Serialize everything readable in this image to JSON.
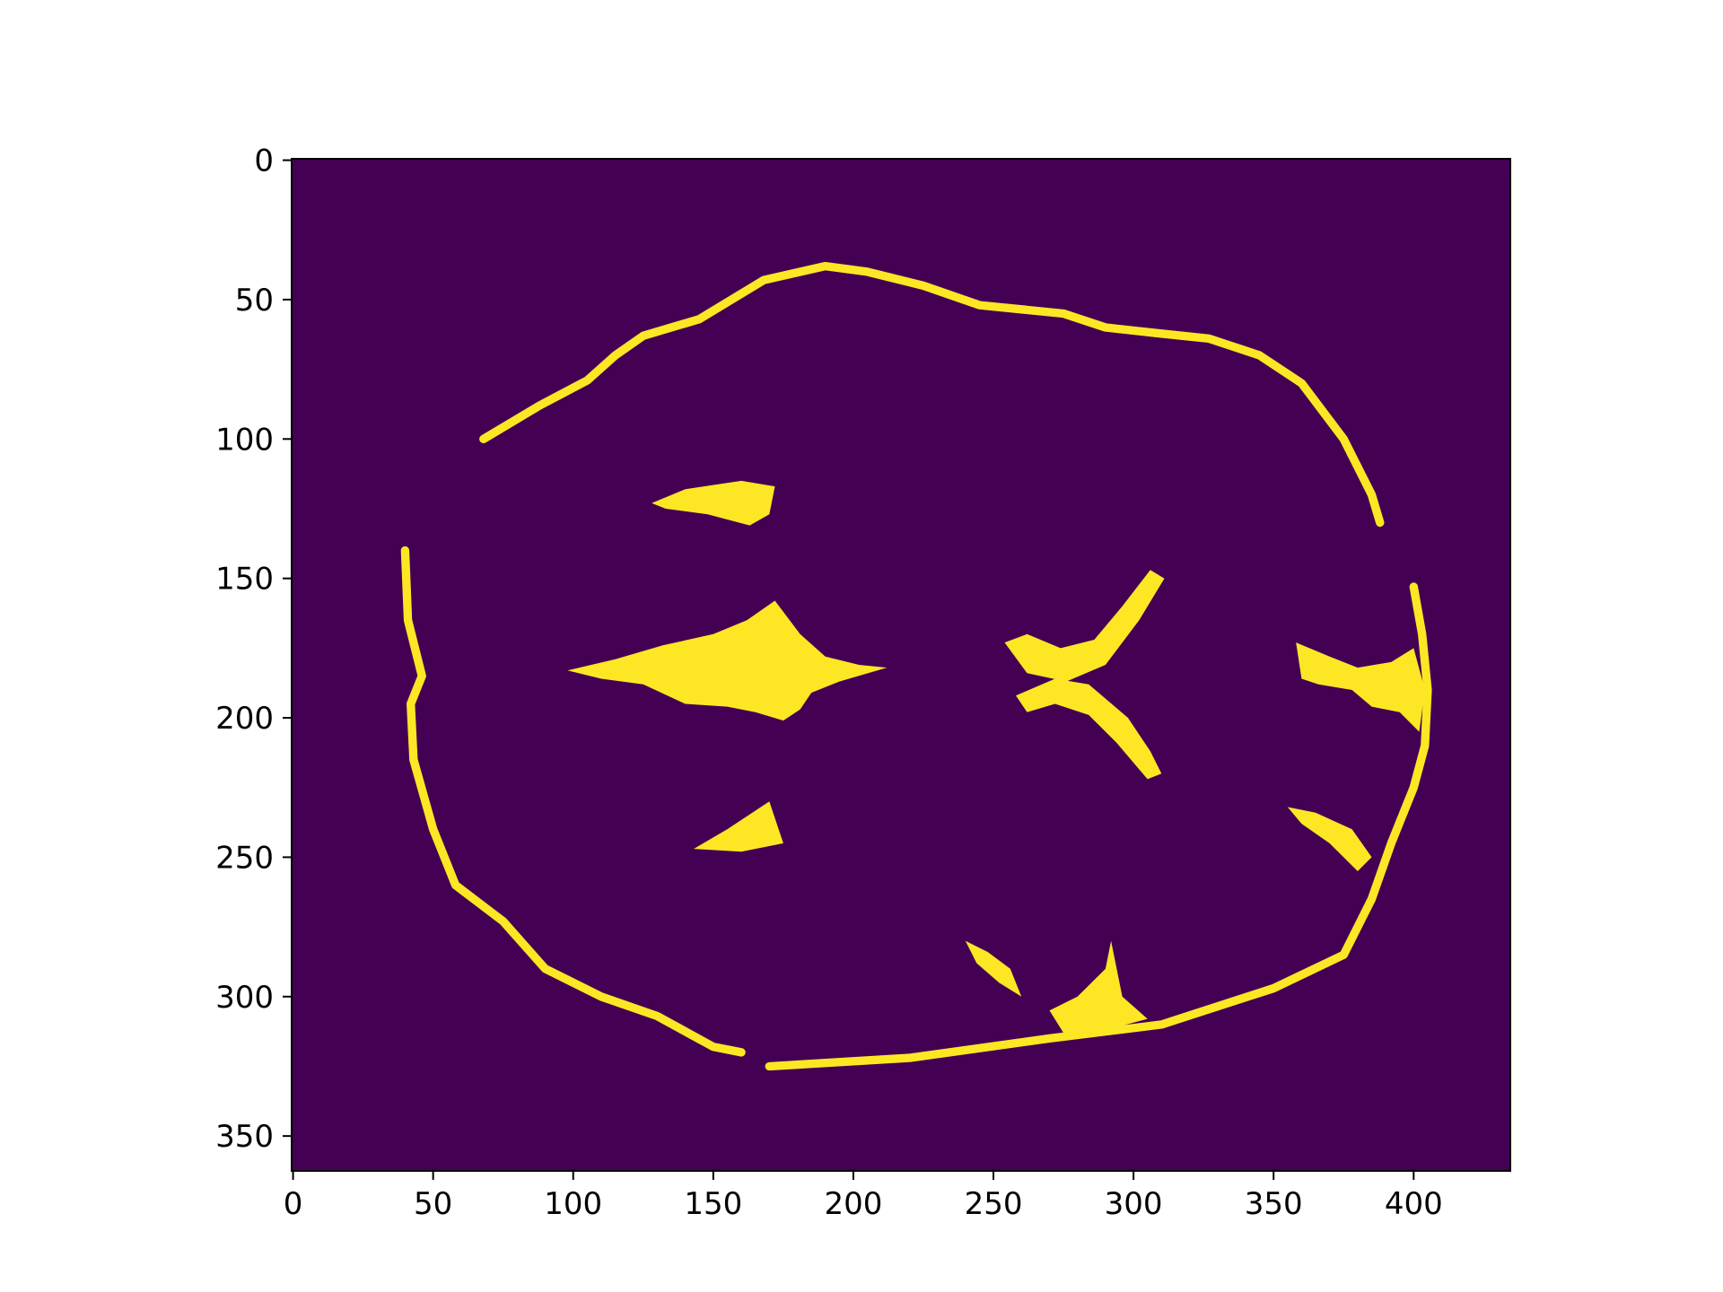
{
  "chart_data": {
    "type": "heatmap",
    "title": "",
    "xlabel": "",
    "ylabel": "",
    "xlim": [
      -0.5,
      434.5
    ],
    "ylim": [
      362.5,
      -0.5
    ],
    "x_ticks": [
      0,
      50,
      100,
      150,
      200,
      250,
      300,
      350,
      400
    ],
    "y_ticks": [
      0,
      50,
      100,
      150,
      200,
      250,
      300,
      350
    ],
    "x_tick_labels": [
      "0",
      "50",
      "100",
      "150",
      "200",
      "250",
      "300",
      "350",
      "400"
    ],
    "y_tick_labels": [
      "0",
      "50",
      "100",
      "150",
      "200",
      "250",
      "300",
      "350"
    ],
    "grid": false,
    "colormap": "viridis",
    "value_range": [
      0,
      1
    ],
    "colors": {
      "background": "#440154",
      "foreground": "#fde725",
      "axis": "#000000"
    },
    "description_values": "binary mask of an axial brain slice; 1 = cerebrospinal fluid / sulci / ventricles, 0 = other",
    "mask_regions": [
      {
        "kind": "outline",
        "name": "outer-rim",
        "width": 3,
        "points": [
          [
            40,
            140
          ],
          [
            41,
            165
          ],
          [
            46,
            185
          ],
          [
            42,
            195
          ],
          [
            43,
            215
          ],
          [
            50,
            240
          ],
          [
            58,
            260
          ],
          [
            75,
            273
          ],
          [
            90,
            290
          ],
          [
            110,
            300
          ],
          [
            130,
            307
          ],
          [
            150,
            318
          ],
          [
            160,
            320
          ]
        ]
      },
      {
        "kind": "outline",
        "name": "outer-rim-right",
        "width": 3,
        "points": [
          [
            170,
            325
          ],
          [
            220,
            322
          ],
          [
            270,
            315
          ],
          [
            310,
            310
          ],
          [
            350,
            297
          ],
          [
            375,
            285
          ],
          [
            385,
            265
          ],
          [
            392,
            245
          ],
          [
            400,
            225
          ],
          [
            404,
            210
          ],
          [
            405,
            190
          ],
          [
            403,
            170
          ],
          [
            400,
            153
          ]
        ]
      },
      {
        "kind": "outline",
        "name": "top-rim",
        "width": 3,
        "points": [
          [
            68,
            100
          ],
          [
            88,
            88
          ],
          [
            105,
            79
          ],
          [
            115,
            70
          ],
          [
            125,
            63
          ],
          [
            145,
            57
          ],
          [
            168,
            43
          ],
          [
            190,
            38
          ],
          [
            205,
            40
          ],
          [
            225,
            45
          ],
          [
            245,
            52
          ],
          [
            275,
            55
          ],
          [
            290,
            60
          ],
          [
            308,
            62
          ],
          [
            327,
            64
          ],
          [
            345,
            70
          ],
          [
            360,
            80
          ],
          [
            375,
            100
          ],
          [
            385,
            120
          ],
          [
            388,
            130
          ]
        ]
      },
      {
        "kind": "blob",
        "name": "top-left-ventricle",
        "points": [
          [
            128,
            123
          ],
          [
            140,
            118
          ],
          [
            160,
            115
          ],
          [
            172,
            117
          ],
          [
            170,
            127
          ],
          [
            163,
            131
          ],
          [
            148,
            127
          ],
          [
            133,
            125
          ]
        ]
      },
      {
        "kind": "blob",
        "name": "center-left-cistern",
        "points": [
          [
            98,
            183
          ],
          [
            115,
            179
          ],
          [
            132,
            174
          ],
          [
            150,
            170
          ],
          [
            162,
            165
          ],
          [
            172,
            158
          ],
          [
            181,
            170
          ],
          [
            190,
            178
          ],
          [
            202,
            181
          ],
          [
            212,
            182
          ],
          [
            195,
            187
          ],
          [
            185,
            191
          ],
          [
            181,
            197
          ],
          [
            175,
            201
          ],
          [
            165,
            198
          ],
          [
            155,
            196
          ],
          [
            140,
            195
          ],
          [
            125,
            188
          ],
          [
            110,
            186
          ]
        ]
      },
      {
        "kind": "blob",
        "name": "center-right-ventricle-upper",
        "points": [
          [
            254,
            173
          ],
          [
            262,
            170
          ],
          [
            274,
            175
          ],
          [
            286,
            172
          ],
          [
            296,
            160
          ],
          [
            306,
            147
          ],
          [
            311,
            150
          ],
          [
            302,
            165
          ],
          [
            290,
            181
          ],
          [
            276,
            187
          ],
          [
            262,
            184
          ]
        ]
      },
      {
        "kind": "blob",
        "name": "center-right-ventricle-lower",
        "points": [
          [
            258,
            192
          ],
          [
            272,
            186
          ],
          [
            284,
            188
          ],
          [
            298,
            200
          ],
          [
            306,
            212
          ],
          [
            310,
            220
          ],
          [
            305,
            222
          ],
          [
            294,
            209
          ],
          [
            284,
            199
          ],
          [
            272,
            195
          ],
          [
            262,
            198
          ]
        ]
      },
      {
        "kind": "blob",
        "name": "right-lateral-cistern",
        "points": [
          [
            358,
            173
          ],
          [
            370,
            178
          ],
          [
            380,
            182
          ],
          [
            392,
            180
          ],
          [
            400,
            175
          ],
          [
            404,
            190
          ],
          [
            402,
            205
          ],
          [
            395,
            198
          ],
          [
            385,
            196
          ],
          [
            378,
            190
          ],
          [
            366,
            188
          ],
          [
            360,
            186
          ]
        ]
      },
      {
        "kind": "blob",
        "name": "lower-left-ventricle",
        "points": [
          [
            143,
            247
          ],
          [
            155,
            240
          ],
          [
            170,
            230
          ],
          [
            175,
            245
          ],
          [
            160,
            248
          ]
        ]
      },
      {
        "kind": "blob",
        "name": "lower-right-cistern",
        "points": [
          [
            355,
            232
          ],
          [
            365,
            234
          ],
          [
            378,
            240
          ],
          [
            385,
            250
          ],
          [
            380,
            255
          ],
          [
            370,
            245
          ],
          [
            360,
            238
          ]
        ]
      },
      {
        "kind": "blob",
        "name": "lower-center-cistern",
        "points": [
          [
            240,
            280
          ],
          [
            248,
            284
          ],
          [
            256,
            290
          ],
          [
            260,
            300
          ],
          [
            252,
            295
          ],
          [
            244,
            288
          ]
        ]
      },
      {
        "kind": "blob",
        "name": "bottom-center-cistern",
        "points": [
          [
            270,
            305
          ],
          [
            280,
            300
          ],
          [
            290,
            290
          ],
          [
            292,
            280
          ],
          [
            296,
            300
          ],
          [
            305,
            308
          ],
          [
            290,
            312
          ],
          [
            275,
            313
          ]
        ]
      }
    ]
  }
}
